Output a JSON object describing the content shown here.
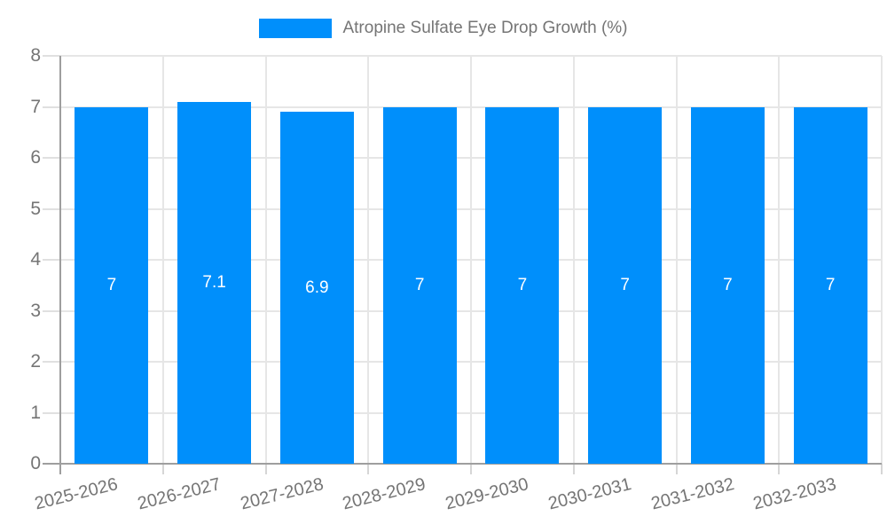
{
  "legend": {
    "items": [
      {
        "label": "Atropine Sulfate Eye Drop Growth (%)",
        "swatch_color": "#008FFB"
      }
    ],
    "position": "top-center"
  },
  "chart_data": {
    "type": "bar",
    "title": "Atropine Sulfate Eye Drop Growth (%)",
    "categories": [
      "2025-2026",
      "2026-2027",
      "2027-2028",
      "2028-2029",
      "2029-2030",
      "2030-2031",
      "2031-2032",
      "2032-2033"
    ],
    "series": [
      {
        "name": "Atropine Sulfate Eye Drop Growth (%)",
        "values": [
          7,
          7.1,
          6.9,
          7,
          7,
          7,
          7,
          7
        ],
        "color": "#008FFB"
      }
    ],
    "bar_value_labels": [
      "7",
      "7.1",
      "6.9",
      "7",
      "7",
      "7",
      "7",
      "7"
    ],
    "xlabel": "",
    "ylabel": "",
    "ylim": [
      0,
      8
    ],
    "yticks": [
      0,
      1,
      2,
      3,
      4,
      5,
      6,
      7,
      8
    ],
    "grid": true,
    "x_label_rotation_deg": -14,
    "legend_position": "top-center",
    "colors": {
      "bar": "#008FFB",
      "grid": "#e6e6e6",
      "axis": "#9e9e9e",
      "tick": "#d6d6d6",
      "text": "#757575",
      "bar_label_text": "#ffffff",
      "background": "#ffffff"
    }
  }
}
